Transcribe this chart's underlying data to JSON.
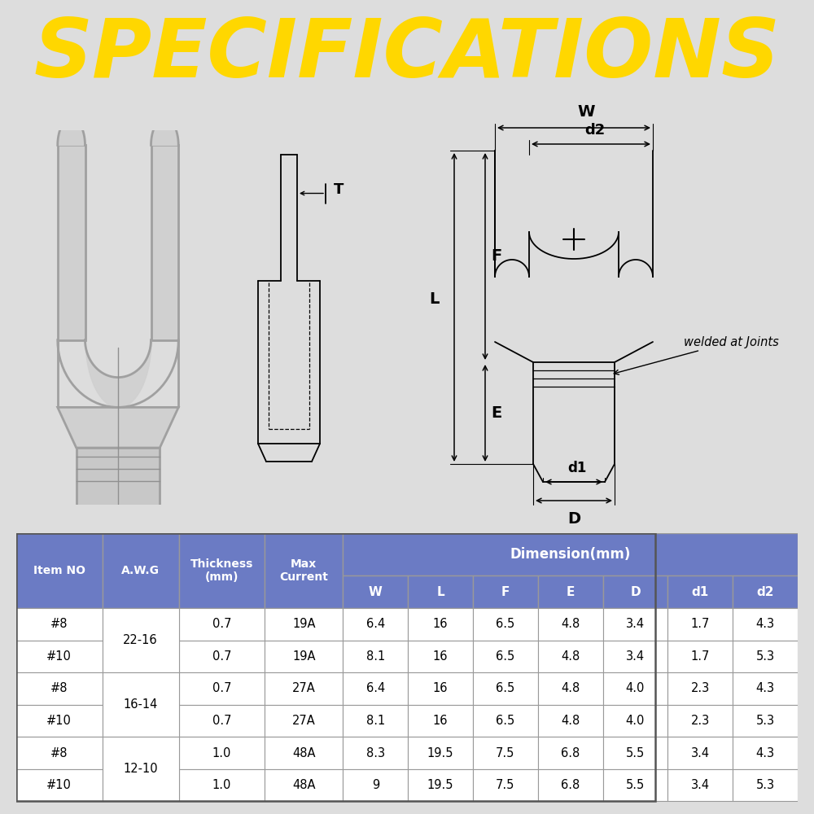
{
  "title": "SPECIFICATIONS",
  "title_color": "#FFD700",
  "title_bg_color": "#6B7BC4",
  "bg_color": "#EEEEEE",
  "diag_bg": "#F5F5F5",
  "table_header_bg": "#6B7BC4",
  "table_header_color": "#FFFFFF",
  "table_row_bg": "#FFFFFF",
  "table_border_color": "#999999",
  "table_columns": [
    "Item NO",
    "A.W.G",
    "Thickness\n(mm)",
    "Max\nCurrent",
    "W",
    "L",
    "F",
    "E",
    "D",
    "d1",
    "d2"
  ],
  "dim_header": "Dimension(mm)",
  "table_data": [
    [
      "#8",
      "22-16",
      "0.7",
      "19A",
      "6.4",
      "16",
      "6.5",
      "4.8",
      "3.4",
      "1.7",
      "4.3"
    ],
    [
      "#10",
      "22-16",
      "0.7",
      "19A",
      "8.1",
      "16",
      "6.5",
      "4.8",
      "3.4",
      "1.7",
      "5.3"
    ],
    [
      "#8",
      "16-14",
      "0.7",
      "27A",
      "6.4",
      "16",
      "6.5",
      "4.8",
      "4.0",
      "2.3",
      "4.3"
    ],
    [
      "#10",
      "16-14",
      "0.7",
      "27A",
      "8.1",
      "16",
      "6.5",
      "4.8",
      "4.0",
      "2.3",
      "5.3"
    ],
    [
      "#8",
      "12-10",
      "1.0",
      "48A",
      "8.3",
      "19.5",
      "7.5",
      "6.8",
      "5.5",
      "3.4",
      "4.3"
    ],
    [
      "#10",
      "12-10",
      "1.0",
      "48A",
      "9",
      "19.5",
      "7.5",
      "6.8",
      "5.5",
      "3.4",
      "5.3"
    ]
  ]
}
